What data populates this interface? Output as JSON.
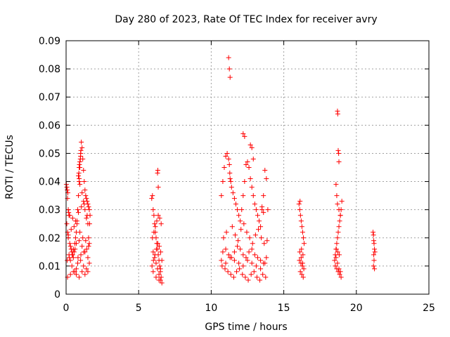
{
  "chart_data": {
    "type": "scatter",
    "title": "Day 280 of 2023, Rate Of TEC Index for receiver avry",
    "xlabel": "GPS time / hours",
    "ylabel": "ROTI / TECUs",
    "xlim": [
      0,
      25
    ],
    "ylim": [
      0,
      0.09
    ],
    "x_ticks": [
      0,
      5,
      10,
      15,
      20,
      25
    ],
    "y_ticks": [
      0,
      0.01,
      0.02,
      0.03,
      0.04,
      0.05,
      0.06,
      0.07,
      0.08,
      0.09
    ],
    "x_tick_labels": [
      "0",
      "5",
      "10",
      "15",
      "20",
      "25"
    ],
    "y_tick_labels": [
      "0",
      "0.01",
      "0.02",
      "0.03",
      "0.04",
      "0.05",
      "0.06",
      "0.07",
      "0.08",
      "0.09"
    ],
    "grid": true,
    "marker": "+",
    "color": "#ff0000",
    "series": [
      {
        "x": [
          0.02,
          0.05,
          0.08,
          0.1,
          0.12,
          0.15,
          0.18,
          0.2,
          0.05,
          0.1,
          0.15,
          0.25,
          0.3,
          0.35,
          0.4,
          0.45,
          0.5,
          0.55,
          0.6,
          0.65,
          0.7,
          0.75,
          0.8,
          0.85,
          0.9,
          0.95,
          1.0,
          1.05,
          1.1,
          1.15,
          1.2,
          1.25,
          1.3,
          1.35,
          1.4,
          1.45,
          1.5,
          1.55,
          1.6,
          1.65,
          0.85,
          0.88,
          0.9,
          0.92,
          0.95,
          0.98,
          1.0,
          1.02,
          0.9,
          0.95,
          1.1,
          1.2,
          1.3,
          1.4,
          1.5,
          1.55,
          0.3,
          0.4,
          0.6,
          0.7,
          0.8,
          1.0,
          1.2,
          1.4,
          1.6,
          0.2,
          0.5,
          0.7,
          0.9,
          1.1,
          1.3,
          1.5,
          0.1,
          0.3,
          0.5,
          0.7,
          0.9,
          1.1,
          1.3,
          1.5,
          0.15,
          0.35,
          0.55,
          0.75,
          0.95,
          1.15,
          1.35,
          1.55,
          0.25,
          0.45,
          0.65,
          0.85,
          1.05,
          1.25,
          1.45,
          1.62,
          0.08,
          0.22,
          0.42,
          0.62,
          0.82,
          1.02,
          1.22,
          1.42,
          1.6
        ],
        "y": [
          0.039,
          0.038,
          0.037,
          0.034,
          0.036,
          0.03,
          0.029,
          0.028,
          0.025,
          0.022,
          0.02,
          0.018,
          0.017,
          0.016,
          0.015,
          0.014,
          0.013,
          0.015,
          0.018,
          0.02,
          0.022,
          0.025,
          0.03,
          0.035,
          0.04,
          0.045,
          0.05,
          0.054,
          0.052,
          0.048,
          0.044,
          0.04,
          0.037,
          0.035,
          0.034,
          0.033,
          0.032,
          0.031,
          0.03,
          0.028,
          0.042,
          0.043,
          0.045,
          0.046,
          0.047,
          0.048,
          0.049,
          0.051,
          0.041,
          0.039,
          0.036,
          0.033,
          0.03,
          0.027,
          0.025,
          0.02,
          0.012,
          0.01,
          0.008,
          0.009,
          0.011,
          0.012,
          0.01,
          0.009,
          0.011,
          0.014,
          0.016,
          0.018,
          0.019,
          0.017,
          0.015,
          0.013,
          0.006,
          0.007,
          0.008,
          0.007,
          0.006,
          0.008,
          0.007,
          0.008,
          0.021,
          0.023,
          0.024,
          0.026,
          0.022,
          0.02,
          0.019,
          0.017,
          0.028,
          0.027,
          0.026,
          0.029,
          0.031,
          0.032,
          0.028,
          0.025,
          0.012,
          0.013,
          0.014,
          0.016,
          0.013,
          0.014,
          0.015,
          0.016,
          0.018
        ]
      },
      {
        "x": [
          5.9,
          5.95,
          6.0,
          6.05,
          6.1,
          6.15,
          6.2,
          6.25,
          6.3,
          6.35,
          6.4,
          6.45,
          6.5,
          6.55,
          6.6,
          6.3,
          6.32,
          6.35,
          6.0,
          6.1,
          6.2,
          6.3,
          6.4,
          6.5,
          5.95,
          6.05,
          6.15,
          6.25,
          6.35,
          6.45,
          6.55,
          5.92,
          6.02,
          6.12,
          6.22,
          6.32,
          6.42,
          6.52,
          6.6,
          6.0,
          6.2,
          6.4,
          6.5
        ],
        "y": [
          0.034,
          0.035,
          0.03,
          0.028,
          0.025,
          0.022,
          0.02,
          0.018,
          0.016,
          0.014,
          0.012,
          0.01,
          0.008,
          0.006,
          0.004,
          0.043,
          0.044,
          0.038,
          0.015,
          0.013,
          0.011,
          0.009,
          0.007,
          0.005,
          0.02,
          0.022,
          0.024,
          0.026,
          0.028,
          0.027,
          0.025,
          0.01,
          0.012,
          0.014,
          0.016,
          0.018,
          0.017,
          0.015,
          0.012,
          0.008,
          0.006,
          0.005,
          0.009
        ]
      },
      {
        "x": [
          10.7,
          10.8,
          10.9,
          11.0,
          11.1,
          11.2,
          11.25,
          11.28,
          11.3,
          11.35,
          11.4,
          11.5,
          11.6,
          11.7,
          11.8,
          11.9,
          12.0,
          12.1,
          12.2,
          12.3,
          12.4,
          12.5,
          12.6,
          12.7,
          12.8,
          12.9,
          13.0,
          13.1,
          13.2,
          13.3,
          13.4,
          13.5,
          13.6,
          13.7,
          13.8,
          13.9,
          11.2,
          11.25,
          11.3,
          12.2,
          12.3,
          12.7,
          12.8,
          12.9,
          13.5,
          13.6,
          10.8,
          11.0,
          11.2,
          11.4,
          11.6,
          11.8,
          12.0,
          12.2,
          12.4,
          12.6,
          12.8,
          13.0,
          13.2,
          13.4,
          13.6,
          13.8,
          10.75,
          10.95,
          11.15,
          11.35,
          11.55,
          11.75,
          11.95,
          12.15,
          12.35,
          12.55,
          12.75,
          12.95,
          13.15,
          13.35,
          13.55,
          13.75,
          10.85,
          11.05,
          11.45,
          11.65,
          11.85,
          12.05,
          12.25,
          12.45,
          12.65,
          12.85,
          13.05,
          13.25,
          13.45,
          13.65,
          13.85,
          10.7,
          11.0,
          11.3,
          11.6,
          11.9,
          12.2,
          12.5,
          12.8,
          13.1,
          13.4,
          13.7
        ],
        "y": [
          0.035,
          0.04,
          0.045,
          0.049,
          0.05,
          0.048,
          0.046,
          0.043,
          0.041,
          0.04,
          0.038,
          0.036,
          0.034,
          0.032,
          0.03,
          0.028,
          0.026,
          0.03,
          0.035,
          0.04,
          0.046,
          0.047,
          0.045,
          0.041,
          0.038,
          0.035,
          0.032,
          0.03,
          0.028,
          0.026,
          0.024,
          0.03,
          0.035,
          0.044,
          0.041,
          0.03,
          0.084,
          0.08,
          0.077,
          0.057,
          0.056,
          0.053,
          0.052,
          0.048,
          0.031,
          0.029,
          0.015,
          0.016,
          0.014,
          0.013,
          0.015,
          0.017,
          0.016,
          0.014,
          0.013,
          0.015,
          0.016,
          0.014,
          0.013,
          0.012,
          0.011,
          0.013,
          0.01,
          0.009,
          0.008,
          0.007,
          0.006,
          0.008,
          0.009,
          0.007,
          0.006,
          0.005,
          0.007,
          0.008,
          0.006,
          0.005,
          0.007,
          0.006,
          0.02,
          0.022,
          0.024,
          0.021,
          0.019,
          0.023,
          0.025,
          0.022,
          0.02,
          0.018,
          0.021,
          0.023,
          0.02,
          0.018,
          0.019,
          0.012,
          0.011,
          0.013,
          0.012,
          0.011,
          0.01,
          0.012,
          0.011,
          0.01,
          0.009,
          0.011
        ]
      },
      {
        "x": [
          16.05,
          16.1,
          16.15,
          16.2,
          16.25,
          16.3,
          16.35,
          16.4,
          16.12,
          16.22,
          16.32,
          16.08,
          16.18,
          16.28,
          16.38,
          16.14,
          16.24,
          16.34,
          16.1,
          16.2,
          16.3
        ],
        "y": [
          0.032,
          0.03,
          0.028,
          0.026,
          0.024,
          0.022,
          0.02,
          0.018,
          0.033,
          0.016,
          0.014,
          0.012,
          0.011,
          0.01,
          0.009,
          0.008,
          0.007,
          0.006,
          0.015,
          0.013,
          0.011
        ]
      },
      {
        "x": [
          18.5,
          18.55,
          18.6,
          18.65,
          18.7,
          18.75,
          18.8,
          18.85,
          18.9,
          18.95,
          19.0,
          18.7,
          18.72,
          18.75,
          18.78,
          18.8,
          18.6,
          18.65,
          18.7,
          18.8,
          18.9,
          18.55,
          18.65,
          18.75,
          18.85,
          18.95,
          18.6,
          18.7,
          18.8,
          18.9,
          18.62,
          18.72,
          18.82
        ],
        "y": [
          0.012,
          0.014,
          0.016,
          0.018,
          0.02,
          0.022,
          0.024,
          0.026,
          0.028,
          0.03,
          0.033,
          0.065,
          0.064,
          0.051,
          0.05,
          0.047,
          0.039,
          0.035,
          0.032,
          0.03,
          0.028,
          0.01,
          0.009,
          0.008,
          0.007,
          0.006,
          0.013,
          0.011,
          0.009,
          0.008,
          0.016,
          0.015,
          0.014
        ]
      },
      {
        "x": [
          21.15,
          21.18,
          21.2,
          21.22,
          21.25,
          21.28,
          21.2,
          21.22,
          21.18,
          21.25
        ],
        "y": [
          0.022,
          0.021,
          0.019,
          0.018,
          0.016,
          0.015,
          0.014,
          0.012,
          0.01,
          0.009
        ]
      }
    ]
  }
}
